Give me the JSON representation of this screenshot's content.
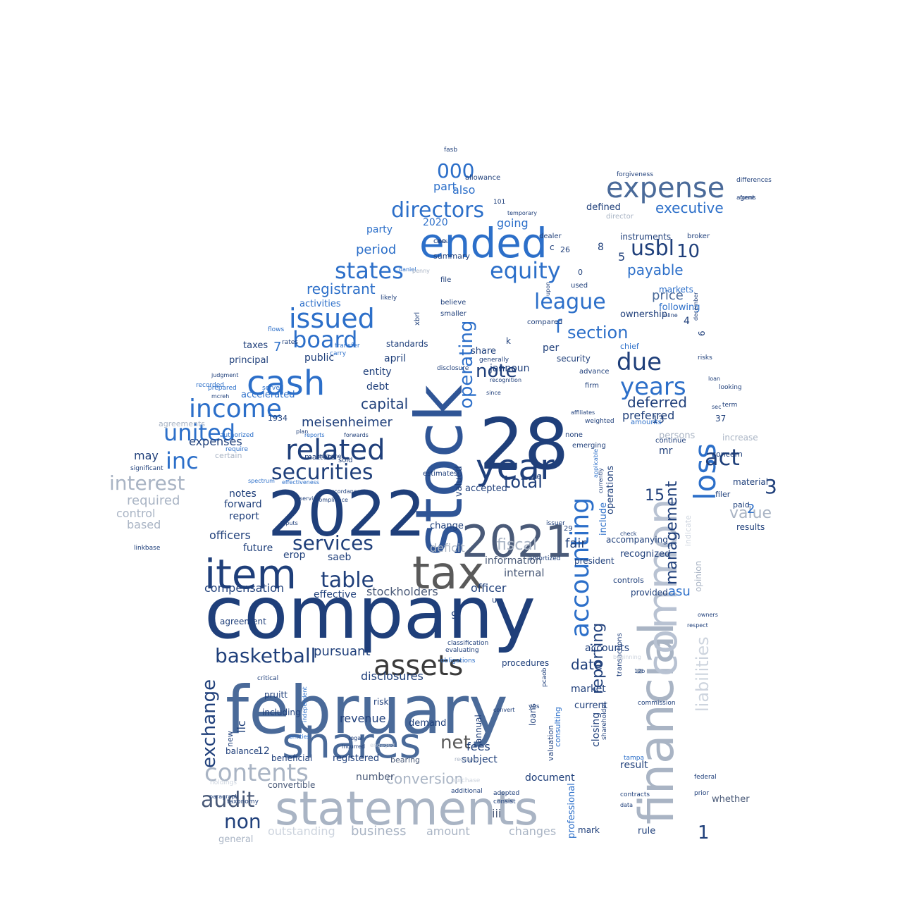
{
  "palette": {
    "navy": "#1f3f7a",
    "blue": "#2c6fc9",
    "steel": "#4a6a99",
    "grey": "#a9b4c4",
    "light": "#cdd4de",
    "dark": "#3a3a3a"
  },
  "words": [
    {
      "text": "company",
      "color": "#1f3f7a"
    },
    {
      "text": "february",
      "color": "#4a6a99"
    },
    {
      "text": "statements",
      "color": "#a9b4c4"
    },
    {
      "text": "stock",
      "color": "#2f5596"
    },
    {
      "text": "financial",
      "color": "#a9b4c4"
    },
    {
      "text": "common",
      "color": "#b8c2d2"
    },
    {
      "text": "2022",
      "color": "#1f3f7a"
    },
    {
      "text": "28",
      "color": "#1f3f7a"
    },
    {
      "text": "2021",
      "color": "#4a5a78"
    },
    {
      "text": "tax",
      "color": "#5a5a5a"
    },
    {
      "text": "item",
      "color": "#1f3f7a"
    },
    {
      "text": "shares",
      "color": "#4a6a99"
    },
    {
      "text": "ended",
      "color": "#2c6fc9"
    },
    {
      "text": "year",
      "color": "#1f3f7a"
    },
    {
      "text": "cash",
      "color": "#2c6fc9"
    },
    {
      "text": "expense",
      "color": "#4a6a99"
    },
    {
      "text": "assets",
      "color": "#3a3a3a"
    },
    {
      "text": "accounting",
      "color": "#2c6fc9"
    },
    {
      "text": "related",
      "color": "#1f3f7a"
    },
    {
      "text": "income",
      "color": "#2c6fc9"
    },
    {
      "text": "united",
      "color": "#2c6fc9"
    },
    {
      "text": "securities",
      "color": "#1f3f7a"
    },
    {
      "text": "loss",
      "color": "#2c6fc9"
    },
    {
      "text": "issued",
      "color": "#2c6fc9"
    },
    {
      "text": "board",
      "color": "#2c6fc9"
    },
    {
      "text": "states",
      "color": "#2c6fc9"
    },
    {
      "text": "directors",
      "color": "#2c6fc9"
    },
    {
      "text": "equity",
      "color": "#2c6fc9"
    },
    {
      "text": "league",
      "color": "#2c6fc9"
    },
    {
      "text": "years",
      "color": "#2c6fc9"
    },
    {
      "text": "due",
      "color": "#1f3f7a"
    },
    {
      "text": "table",
      "color": "#1f3f7a"
    },
    {
      "text": "services",
      "color": "#1f3f7a"
    },
    {
      "text": "basketball",
      "color": "#1f3f7a"
    },
    {
      "text": "contents",
      "color": "#a9b4c4"
    },
    {
      "text": "interest",
      "color": "#a9b4c4"
    },
    {
      "text": "inc",
      "color": "#2c6fc9"
    },
    {
      "text": "operating",
      "color": "#2c6fc9"
    },
    {
      "text": "act",
      "color": "#1f3f7a"
    },
    {
      "text": "total",
      "color": "#1f3f7a"
    },
    {
      "text": "liabilities",
      "color": "#cdd4de"
    },
    {
      "text": "management",
      "color": "#1f3f7a"
    },
    {
      "text": "reporting",
      "color": "#1f3f7a"
    },
    {
      "text": "section",
      "color": "#2c6fc9"
    },
    {
      "text": "note",
      "color": "#1f3f7a"
    },
    {
      "text": "usbl",
      "color": "#1f3f7a"
    },
    {
      "text": "000",
      "color": "#2c6fc9"
    },
    {
      "text": "audit",
      "color": "#4a5a78"
    },
    {
      "text": "non",
      "color": "#1f3f7a"
    },
    {
      "text": "net",
      "color": "#5a5a5a"
    },
    {
      "text": "conversion",
      "color": "#a9b4c4"
    },
    {
      "text": "exchange",
      "color": "#1f3f7a"
    },
    {
      "text": "executive",
      "color": "#2c6fc9"
    },
    {
      "text": "deferred",
      "color": "#1f3f7a"
    },
    {
      "text": "payable",
      "color": "#2c6fc9"
    },
    {
      "text": "price",
      "color": "#4a6a99"
    },
    {
      "text": "registrant",
      "color": "#2c6fc9"
    },
    {
      "text": "period",
      "color": "#2c6fc9"
    },
    {
      "text": "fiscal",
      "color": "#a9b4c4"
    },
    {
      "text": "capital",
      "color": "#1f3f7a"
    },
    {
      "text": "meisenheimer",
      "color": "#1f3f7a"
    },
    {
      "text": "compensation",
      "color": "#1f3f7a"
    },
    {
      "text": "officers",
      "color": "#1f3f7a"
    },
    {
      "text": "expenses",
      "color": "#1f3f7a"
    },
    {
      "text": "required",
      "color": "#a9b4c4"
    },
    {
      "text": "control",
      "color": "#a9b4c4"
    },
    {
      "text": "based",
      "color": "#a9b4c4"
    },
    {
      "text": "may",
      "color": "#1f3f7a"
    },
    {
      "text": "value",
      "color": "#a9b4c4"
    },
    {
      "text": "date",
      "color": "#1f3f7a"
    },
    {
      "text": "fair",
      "color": "#1f3f7a"
    },
    {
      "text": "preferred",
      "color": "#1f3f7a"
    },
    {
      "text": "fees",
      "color": "#1f3f7a"
    },
    {
      "text": "pursuant",
      "color": "#1f3f7a"
    },
    {
      "text": "disclosures",
      "color": "#1f3f7a"
    },
    {
      "text": "revenue",
      "color": "#1f3f7a"
    },
    {
      "text": "business",
      "color": "#a9b4c4"
    },
    {
      "text": "amount",
      "color": "#a9b4c4"
    },
    {
      "text": "outstanding",
      "color": "#cdd4de"
    },
    {
      "text": "changes",
      "color": "#a9b4c4"
    },
    {
      "text": "iii",
      "color": "#4a5a78"
    },
    {
      "text": "officer",
      "color": "#1f3f7a"
    },
    {
      "text": "internal",
      "color": "#4a5a78"
    },
    {
      "text": "information",
      "color": "#4a5a78"
    },
    {
      "text": "deficit",
      "color": "#a9b4c4"
    },
    {
      "text": "stockholders",
      "color": "#4a5a78"
    },
    {
      "text": "effective",
      "color": "#1f3f7a"
    },
    {
      "text": "future",
      "color": "#1f3f7a"
    },
    {
      "text": "forward",
      "color": "#1f3f7a"
    },
    {
      "text": "notes",
      "color": "#1f3f7a"
    },
    {
      "text": "report",
      "color": "#1f3f7a"
    },
    {
      "text": "debt",
      "color": "#1f3f7a"
    },
    {
      "text": "entity",
      "color": "#1f3f7a"
    },
    {
      "text": "april",
      "color": "#1f3f7a"
    },
    {
      "text": "public",
      "color": "#1f3f7a"
    },
    {
      "text": "principal",
      "color": "#1f3f7a"
    },
    {
      "text": "taxes",
      "color": "#1f3f7a"
    },
    {
      "text": "accelerated",
      "color": "#2c6fc9"
    },
    {
      "text": "activities",
      "color": "#2c6fc9"
    },
    {
      "text": "part",
      "color": "#2c6fc9"
    },
    {
      "text": "also",
      "color": "#2c6fc9"
    },
    {
      "text": "going",
      "color": "#2c6fc9"
    },
    {
      "text": "party",
      "color": "#2c6fc9"
    },
    {
      "text": "2020",
      "color": "#2c6fc9"
    },
    {
      "text": "standards",
      "color": "#1f3f7a"
    },
    {
      "text": "share",
      "color": "#1f3f7a"
    },
    {
      "text": "jannoun",
      "color": "#1f3f7a"
    },
    {
      "text": "valued",
      "color": "#1f3f7a"
    },
    {
      "text": "accepted",
      "color": "#1f3f7a"
    },
    {
      "text": "change",
      "color": "#1f3f7a"
    },
    {
      "text": "15",
      "color": "#1f3f7a"
    },
    {
      "text": "10",
      "color": "#1f3f7a"
    },
    {
      "text": "3",
      "color": "#1f3f7a"
    },
    {
      "text": "2",
      "color": "#2c6fc9"
    },
    {
      "text": "1",
      "color": "#1f3f7a"
    },
    {
      "text": "7",
      "color": "#2c6fc9"
    },
    {
      "text": "f",
      "color": "#2c6fc9"
    },
    {
      "text": "5",
      "color": "#1f3f7a"
    },
    {
      "text": "4",
      "color": "#1f3f7a"
    },
    {
      "text": "6",
      "color": "#1f3f7a"
    },
    {
      "text": "12",
      "color": "#1f3f7a"
    },
    {
      "text": "9",
      "color": "#1f3f7a"
    },
    {
      "text": "8",
      "color": "#1f3f7a"
    },
    {
      "text": "c",
      "color": "#1f3f7a"
    },
    {
      "text": "0",
      "color": "#1f3f7a"
    },
    {
      "text": "k",
      "color": "#1f3f7a"
    },
    {
      "text": "u",
      "color": "#1f3f7a"
    },
    {
      "text": "29",
      "color": "#1f3f7a"
    },
    {
      "text": "26",
      "color": "#1f3f7a"
    },
    {
      "text": "06",
      "color": "#1f3f7a"
    },
    {
      "text": "37",
      "color": "#1f3f7a"
    },
    {
      "text": "13",
      "color": "#1f3f7a"
    },
    {
      "text": "mr",
      "color": "#1f3f7a"
    },
    {
      "text": "asu",
      "color": "#2c6fc9"
    },
    {
      "text": "llc",
      "color": "#1f3f7a"
    },
    {
      "text": "erop",
      "color": "#1f3f7a"
    },
    {
      "text": "saeb",
      "color": "#1f3f7a"
    },
    {
      "text": "per",
      "color": "#1f3f7a"
    },
    {
      "text": "chief",
      "color": "#2c6fc9"
    },
    {
      "text": "security",
      "color": "#1f3f7a"
    },
    {
      "text": "ownership",
      "color": "#1f3f7a"
    },
    {
      "text": "following",
      "color": "#2c6fc9"
    },
    {
      "text": "markets",
      "color": "#2c6fc9"
    },
    {
      "text": "instruments",
      "color": "#1f3f7a"
    },
    {
      "text": "broker",
      "color": "#1f3f7a"
    },
    {
      "text": "defined",
      "color": "#1f3f7a"
    },
    {
      "text": "director",
      "color": "#a9b4c4"
    },
    {
      "text": "increase",
      "color": "#a9b4c4"
    },
    {
      "text": "concern",
      "color": "#1f3f7a"
    },
    {
      "text": "material",
      "color": "#1f3f7a"
    },
    {
      "text": "filer",
      "color": "#1f3f7a"
    },
    {
      "text": "paid",
      "color": "#1f3f7a"
    },
    {
      "text": "results",
      "color": "#1f3f7a"
    },
    {
      "text": "persons",
      "color": "#a9b4c4"
    },
    {
      "text": "continue",
      "color": "#1f3f7a"
    },
    {
      "text": "amounts",
      "color": "#2c6fc9"
    },
    {
      "text": "include",
      "color": "#2c6fc9"
    },
    {
      "text": "operations",
      "color": "#1f3f7a"
    },
    {
      "text": "recognized",
      "color": "#1f3f7a"
    },
    {
      "text": "accompanying",
      "color": "#1f3f7a"
    },
    {
      "text": "controls",
      "color": "#1f3f7a"
    },
    {
      "text": "provided",
      "color": "#1f3f7a"
    },
    {
      "text": "accounts",
      "color": "#1f3f7a"
    },
    {
      "text": "market",
      "color": "#1f3f7a"
    },
    {
      "text": "closing",
      "color": "#1f3f7a"
    },
    {
      "text": "current",
      "color": "#1f3f7a"
    },
    {
      "text": "valuation",
      "color": "#1f3f7a"
    },
    {
      "text": "consulting",
      "color": "#2c6fc9"
    },
    {
      "text": "professional",
      "color": "#2c6fc9"
    },
    {
      "text": "president",
      "color": "#1f3f7a"
    },
    {
      "text": "loans",
      "color": "#1f3f7a"
    },
    {
      "text": "document",
      "color": "#1f3f7a"
    },
    {
      "text": "procedures",
      "color": "#1f3f7a"
    },
    {
      "text": "annual",
      "color": "#1f3f7a"
    },
    {
      "text": "subject",
      "color": "#1f3f7a"
    },
    {
      "text": "demand",
      "color": "#1f3f7a"
    },
    {
      "text": "number",
      "color": "#4a5a78"
    },
    {
      "text": "registered",
      "color": "#1f3f7a"
    },
    {
      "text": "bearing",
      "color": "#4a5a78"
    },
    {
      "text": "beneficial",
      "color": "#1f3f7a"
    },
    {
      "text": "convertible",
      "color": "#4a5a78"
    },
    {
      "text": "balance",
      "color": "#1f3f7a"
    },
    {
      "text": "including",
      "color": "#1f3f7a"
    },
    {
      "text": "new",
      "color": "#1f3f7a"
    },
    {
      "text": "pruitt",
      "color": "#1f3f7a"
    },
    {
      "text": "agreement",
      "color": "#1f3f7a"
    },
    {
      "text": "risk",
      "color": "#1f3f7a"
    },
    {
      "text": "result",
      "color": "#1f3f7a"
    },
    {
      "text": "whether",
      "color": "#4a5a78"
    },
    {
      "text": "rule",
      "color": "#1f3f7a"
    },
    {
      "text": "mark",
      "color": "#1f3f7a"
    },
    {
      "text": "general",
      "color": "#a9b4c4"
    },
    {
      "text": "opinion",
      "color": "#a9b4c4"
    },
    {
      "text": "indicate",
      "color": "#cdd4de"
    },
    {
      "text": "certain",
      "color": "#a9b4c4"
    },
    {
      "text": "agreements",
      "color": "#a9b4c4"
    },
    {
      "text": "1934",
      "color": "#1f3f7a"
    },
    {
      "text": "matters",
      "color": "#1f3f7a"
    },
    {
      "text": "sold",
      "color": "#1f3f7a"
    },
    {
      "text": "estimates",
      "color": "#1f3f7a"
    },
    {
      "text": "allowance",
      "color": "#1f3f7a"
    },
    {
      "text": "101",
      "color": "#1f3f7a"
    },
    {
      "text": "fasb",
      "color": "#1f3f7a"
    },
    {
      "text": "dealer",
      "color": "#1f3f7a"
    },
    {
      "text": "used",
      "color": "#1f3f7a"
    },
    {
      "text": "file",
      "color": "#1f3f7a"
    },
    {
      "text": "believe",
      "color": "#1f3f7a"
    },
    {
      "text": "xbrl",
      "color": "#1f3f7a"
    },
    {
      "text": "smaller",
      "color": "#1f3f7a"
    },
    {
      "text": "ceo",
      "color": "#1f3f7a"
    },
    {
      "text": "likely",
      "color": "#1f3f7a"
    },
    {
      "text": "summary",
      "color": "#1f3f7a"
    },
    {
      "text": "generally",
      "color": "#1f3f7a"
    },
    {
      "text": "disclosure",
      "color": "#1f3f7a"
    },
    {
      "text": "advance",
      "color": "#1f3f7a"
    },
    {
      "text": "firm",
      "color": "#1f3f7a"
    },
    {
      "text": "emerging",
      "color": "#1f3f7a"
    },
    {
      "text": "none",
      "color": "#1f3f7a"
    },
    {
      "text": "compared",
      "color": "#1f3f7a"
    },
    {
      "text": "flows",
      "color": "#2c6fc9"
    },
    {
      "text": "rates",
      "color": "#1f3f7a"
    },
    {
      "text": "transfer",
      "color": "#2c6fc9"
    },
    {
      "text": "carry",
      "color": "#2c6fc9"
    },
    {
      "text": "served",
      "color": "#2c6fc9"
    },
    {
      "text": "prepared",
      "color": "#2c6fc9"
    },
    {
      "text": "recorded",
      "color": "#2c6fc9"
    },
    {
      "text": "require",
      "color": "#2c6fc9"
    },
    {
      "text": "authorized",
      "color": "#2c6fc9"
    },
    {
      "text": "significant",
      "color": "#1f3f7a"
    },
    {
      "text": "differences",
      "color": "#1f3f7a"
    },
    {
      "text": "forgiveness",
      "color": "#1f3f7a"
    },
    {
      "text": "agent",
      "color": "#1f3f7a"
    },
    {
      "text": "forms",
      "color": "#1f3f7a"
    },
    {
      "text": "loan",
      "color": "#1f3f7a"
    },
    {
      "text": "risks",
      "color": "#1f3f7a"
    },
    {
      "text": "looking",
      "color": "#1f3f7a"
    },
    {
      "text": "term",
      "color": "#1f3f7a"
    },
    {
      "text": "sec",
      "color": "#1f3f7a"
    },
    {
      "text": "inline",
      "color": "#1f3f7a"
    },
    {
      "text": "owners",
      "color": "#1f3f7a"
    },
    {
      "text": "respect",
      "color": "#1f3f7a"
    },
    {
      "text": "federal",
      "color": "#1f3f7a"
    },
    {
      "text": "prior",
      "color": "#1f3f7a"
    },
    {
      "text": "contracts",
      "color": "#1f3f7a"
    },
    {
      "text": "data",
      "color": "#1f3f7a"
    },
    {
      "text": "tampa",
      "color": "#2c6fc9"
    },
    {
      "text": "commission",
      "color": "#1f3f7a"
    },
    {
      "text": "transactions",
      "color": "#1f3f7a"
    },
    {
      "text": "shareholder",
      "color": "#1f3f7a"
    },
    {
      "text": "pcaob",
      "color": "#1f3f7a"
    },
    {
      "text": "issuer",
      "color": "#1f3f7a"
    },
    {
      "text": "amortized",
      "color": "#1f3f7a"
    },
    {
      "text": "adopted",
      "color": "#1f3f7a"
    },
    {
      "text": "additional",
      "color": "#1f3f7a"
    },
    {
      "text": "consist",
      "color": "#1f3f7a"
    },
    {
      "text": "purchase",
      "color": "#cdd4de"
    },
    {
      "text": "engaged",
      "color": "#cdd4de"
    },
    {
      "text": "legal",
      "color": "#1f3f7a"
    },
    {
      "text": "incurred",
      "color": "#1f3f7a"
    },
    {
      "text": "compliance",
      "color": "#1f3f7a"
    },
    {
      "text": "accordance",
      "color": "#1f3f7a"
    },
    {
      "text": "service",
      "color": "#1f3f7a"
    },
    {
      "text": "effectiveness",
      "color": "#2c6fc9"
    },
    {
      "text": "inputs",
      "color": "#1f3f7a"
    },
    {
      "text": "spectrum",
      "color": "#2c6fc9"
    },
    {
      "text": "holdings",
      "color": "#cdd4de"
    },
    {
      "text": "paragraph",
      "color": "#1f3f7a"
    },
    {
      "text": "taxonomy",
      "color": "#1f3f7a"
    },
    {
      "text": "linkbase",
      "color": "#1f3f7a"
    },
    {
      "text": "classification",
      "color": "#1f3f7a"
    },
    {
      "text": "evaluating",
      "color": "#1f3f7a"
    },
    {
      "text": "obligations",
      "color": "#2c6fc9"
    },
    {
      "text": "critical",
      "color": "#1f3f7a"
    },
    {
      "text": "yes",
      "color": "#1f3f7a"
    },
    {
      "text": "daniel",
      "color": "#2c6fc9"
    },
    {
      "text": "penny",
      "color": "#a9b4c4"
    },
    {
      "text": "temporary",
      "color": "#1f3f7a"
    },
    {
      "text": "weighted",
      "color": "#1f3f7a"
    },
    {
      "text": "check",
      "color": "#1f3f7a"
    },
    {
      "text": "applicable",
      "color": "#2c6fc9"
    },
    {
      "text": "currently",
      "color": "#1f3f7a"
    },
    {
      "text": "recognition",
      "color": "#1f3f7a"
    },
    {
      "text": "convert",
      "color": "#1f3f7a"
    },
    {
      "text": "received",
      "color": "#a9b4c4"
    },
    {
      "text": "independent",
      "color": "#2c6fc9"
    },
    {
      "text": "entities",
      "color": "#2c6fc9"
    },
    {
      "text": "beginning",
      "color": "#cdd4de"
    },
    {
      "text": "12b",
      "color": "#1f3f7a"
    },
    {
      "text": "affiliates",
      "color": "#1f3f7a"
    },
    {
      "text": "december",
      "color": "#1f3f7a"
    },
    {
      "text": "mcreh",
      "color": "#1f3f7a"
    },
    {
      "text": "judgment",
      "color": "#1f3f7a"
    },
    {
      "text": "since",
      "color": "#1f3f7a"
    },
    {
      "text": "less",
      "color": "#1f3f7a"
    },
    {
      "text": "upon",
      "color": "#1f3f7a"
    },
    {
      "text": "plan",
      "color": "#1f3f7a"
    },
    {
      "text": "reports",
      "color": "#2c6fc9"
    },
    {
      "text": "sarbanes",
      "color": "#1f3f7a"
    },
    {
      "text": "forwards",
      "color": "#1f3f7a"
    }
  ]
}
